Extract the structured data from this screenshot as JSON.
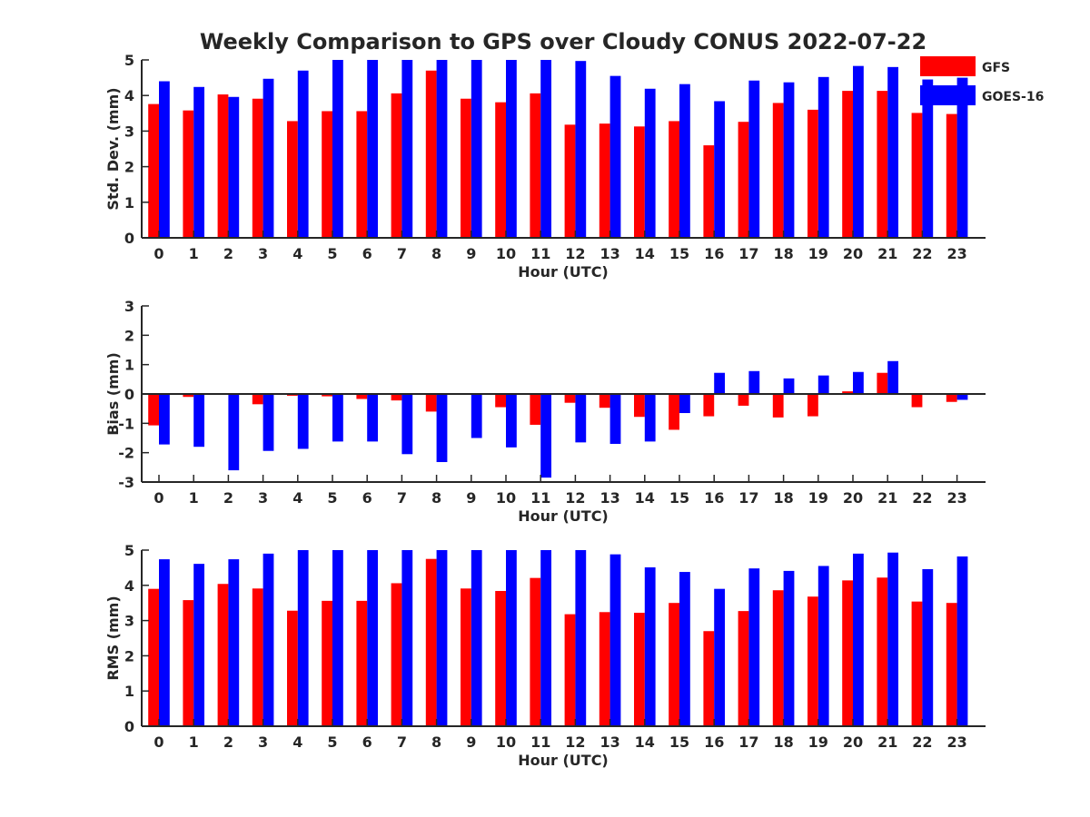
{
  "title": "Weekly Comparison to GPS over Cloudy CONUS 2022-07-22",
  "legend": {
    "placement": "top-right",
    "entries": [
      {
        "label": "GFS",
        "color": "#ff0000"
      },
      {
        "label": "GOES-16",
        "color": "#0000ff"
      }
    ]
  },
  "colors": {
    "gfs": "#ff0000",
    "goes": "#0000ff",
    "axis": "#262626"
  },
  "chart_data": [
    {
      "type": "bar",
      "ylabel": "Std. Dev. (mm)",
      "xlabel": "Hour (UTC)",
      "ylim": [
        0,
        5
      ],
      "yticks": [
        0,
        1,
        2,
        3,
        4,
        5
      ],
      "categories": [
        "0",
        "1",
        "2",
        "3",
        "4",
        "5",
        "6",
        "7",
        "8",
        "9",
        "10",
        "11",
        "12",
        "13",
        "14",
        "15",
        "16",
        "17",
        "18",
        "19",
        "20",
        "21",
        "22",
        "23"
      ],
      "series": [
        {
          "name": "GFS",
          "values": [
            3.76,
            3.58,
            4.03,
            3.91,
            3.28,
            3.56,
            3.56,
            4.06,
            4.7,
            3.91,
            3.81,
            4.06,
            3.18,
            3.21,
            3.13,
            3.28,
            2.6,
            3.26,
            3.79,
            3.6,
            4.13,
            4.13,
            3.51,
            3.48
          ]
        },
        {
          "name": "GOES-16",
          "values": [
            4.4,
            4.24,
            3.96,
            4.47,
            4.7,
            5.0,
            5.0,
            5.0,
            5.0,
            5.0,
            5.0,
            5.0,
            4.97,
            4.55,
            4.19,
            4.32,
            3.84,
            4.42,
            4.37,
            4.52,
            4.83,
            4.8,
            4.45,
            4.5
          ]
        }
      ]
    },
    {
      "type": "bar",
      "ylabel": "Bias (mm)",
      "xlabel": "Hour (UTC)",
      "ylim": [
        -3,
        3
      ],
      "yticks": [
        -3,
        -2,
        -1,
        0,
        1,
        2,
        3
      ],
      "categories": [
        "0",
        "1",
        "2",
        "3",
        "4",
        "5",
        "6",
        "7",
        "8",
        "9",
        "10",
        "11",
        "12",
        "13",
        "14",
        "15",
        "16",
        "17",
        "18",
        "19",
        "20",
        "21",
        "22",
        "23"
      ],
      "series": [
        {
          "name": "GFS",
          "values": [
            -1.07,
            -0.1,
            0.0,
            -0.35,
            -0.06,
            -0.08,
            -0.17,
            -0.22,
            -0.6,
            -0.03,
            -0.45,
            -1.05,
            -0.3,
            -0.47,
            -0.78,
            -1.22,
            -0.76,
            -0.4,
            -0.8,
            -0.76,
            0.09,
            0.72,
            -0.45,
            -0.27
          ]
        },
        {
          "name": "GOES-16",
          "values": [
            -1.72,
            -1.8,
            -2.6,
            -1.94,
            -1.87,
            -1.62,
            -1.62,
            -2.05,
            -2.32,
            -1.5,
            -1.82,
            -2.85,
            -1.65,
            -1.7,
            -1.62,
            -0.65,
            0.72,
            0.78,
            0.53,
            0.63,
            0.75,
            1.12,
            0.0,
            -0.2
          ]
        }
      ]
    },
    {
      "type": "bar",
      "ylabel": "RMS (mm)",
      "xlabel": "Hour (UTC)",
      "ylim": [
        0,
        5
      ],
      "yticks": [
        0,
        1,
        2,
        3,
        4,
        5
      ],
      "categories": [
        "0",
        "1",
        "2",
        "3",
        "4",
        "5",
        "6",
        "7",
        "8",
        "9",
        "10",
        "11",
        "12",
        "13",
        "14",
        "15",
        "16",
        "17",
        "18",
        "19",
        "20",
        "21",
        "22",
        "23"
      ],
      "series": [
        {
          "name": "GFS",
          "values": [
            3.9,
            3.58,
            4.04,
            3.91,
            3.28,
            3.56,
            3.56,
            4.06,
            4.75,
            3.91,
            3.84,
            4.21,
            3.18,
            3.24,
            3.22,
            3.5,
            2.7,
            3.27,
            3.86,
            3.68,
            4.14,
            4.22,
            3.54,
            3.5
          ]
        },
        {
          "name": "GOES-16",
          "values": [
            4.74,
            4.61,
            4.74,
            4.9,
            5.0,
            5.0,
            5.0,
            5.0,
            5.0,
            5.0,
            5.0,
            5.0,
            5.0,
            4.88,
            4.51,
            4.38,
            3.9,
            4.48,
            4.41,
            4.55,
            4.9,
            4.93,
            4.46,
            4.82
          ]
        }
      ]
    }
  ]
}
